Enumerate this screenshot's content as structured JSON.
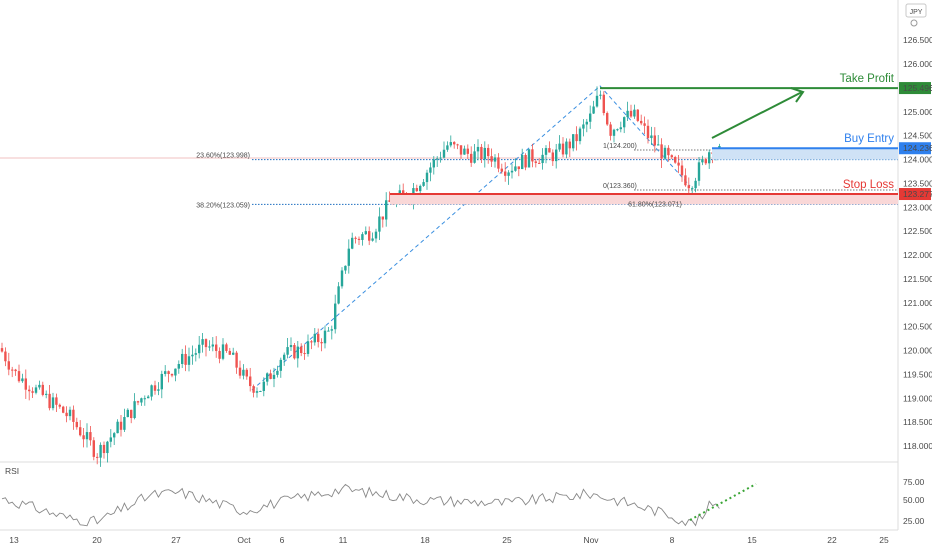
{
  "currency": "JPY",
  "colors": {
    "up": "#26a69a",
    "down": "#ef5350",
    "tp": "#2e8b38",
    "entry": "#2f80ed",
    "sl": "#e53935",
    "fib": "#1e6fc0",
    "rsi": "#888888",
    "rsi_trend": "#3aa536"
  },
  "chart_data": {
    "type": "candlestick",
    "ylim": [
      117.5,
      127.2
    ],
    "y_ticks": [
      "126.500",
      "126.000",
      "125.500",
      "125.000",
      "124.500",
      "124.000",
      "123.500",
      "123.000",
      "122.500",
      "122.000",
      "121.500",
      "121.000",
      "120.500",
      "120.000",
      "119.500",
      "119.000",
      "118.500",
      "118.000"
    ],
    "x_ticks": [
      "13",
      "20",
      "27",
      "Oct",
      "6",
      "11",
      "18",
      "25",
      "Nov",
      "8",
      "15",
      "22",
      "25"
    ],
    "levels": {
      "take_profit": {
        "label": "Take Profit",
        "value": "125.496"
      },
      "buy_entry": {
        "label": "Buy Entry",
        "value": "124.236"
      },
      "stop_loss": {
        "label": "Stop Loss",
        "value": "123.277"
      }
    },
    "fib_labels": [
      "23.60%(123.998)",
      "38.20%(123.059)",
      "1(124.200)",
      "0(123.360)",
      "61.80%(123.071)"
    ],
    "rsi": {
      "label": "RSI",
      "ticks": [
        "75.00",
        "50.00",
        "25.00"
      ]
    }
  }
}
